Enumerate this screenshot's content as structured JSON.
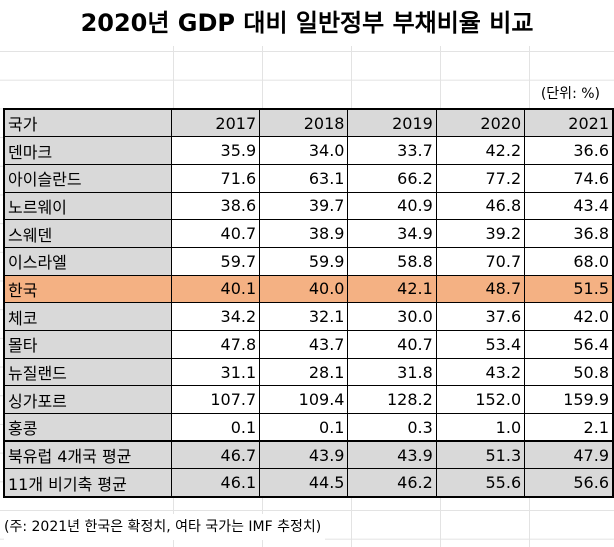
{
  "title": "2020년 GDP 대비 일반정부 부채비율 비교",
  "unit": "(단위: %)",
  "colors": {
    "header_bg": "#d9d9d9",
    "highlight_korea": "#f4b183"
  },
  "table": {
    "headers": [
      "국가",
      "2017",
      "2018",
      "2019",
      "2020",
      "2021"
    ],
    "rows": [
      {
        "name": "덴마크",
        "values": [
          "35.9",
          "34.0",
          "33.7",
          "42.2",
          "36.6"
        ]
      },
      {
        "name": "아이슬란드",
        "values": [
          "71.6",
          "63.1",
          "66.2",
          "77.2",
          "74.6"
        ]
      },
      {
        "name": "노르웨이",
        "values": [
          "38.6",
          "39.7",
          "40.9",
          "46.8",
          "43.4"
        ]
      },
      {
        "name": "스웨덴",
        "values": [
          "40.7",
          "38.9",
          "34.9",
          "39.2",
          "36.8"
        ]
      },
      {
        "name": "이스라엘",
        "values": [
          "59.7",
          "59.9",
          "58.8",
          "70.7",
          "68.0"
        ]
      },
      {
        "name": "한국",
        "values": [
          "40.1",
          "40.0",
          "42.1",
          "48.7",
          "51.5"
        ],
        "highlight": true
      },
      {
        "name": "체코",
        "values": [
          "34.2",
          "32.1",
          "30.0",
          "37.6",
          "42.0"
        ]
      },
      {
        "name": "몰타",
        "values": [
          "47.8",
          "43.7",
          "40.7",
          "53.4",
          "56.4"
        ]
      },
      {
        "name": "뉴질랜드",
        "values": [
          "31.1",
          "28.1",
          "31.8",
          "43.2",
          "50.8"
        ]
      },
      {
        "name": "싱가포르",
        "values": [
          "107.7",
          "109.4",
          "128.2",
          "152.0",
          "159.9"
        ]
      },
      {
        "name": "홍콩",
        "values": [
          "0.1",
          "0.1",
          "0.3",
          "1.0",
          "2.1"
        ]
      }
    ],
    "averages": [
      {
        "name": "북유럽 4개국 평균",
        "values": [
          "46.7",
          "43.9",
          "43.9",
          "51.3",
          "47.9"
        ]
      },
      {
        "name": "11개 비기축 평균",
        "values": [
          "46.1",
          "44.5",
          "46.2",
          "55.6",
          "56.6"
        ]
      }
    ]
  },
  "note": "(주: 2021년 한국은 확정치, 여타 국가는 IMF 추정치)"
}
